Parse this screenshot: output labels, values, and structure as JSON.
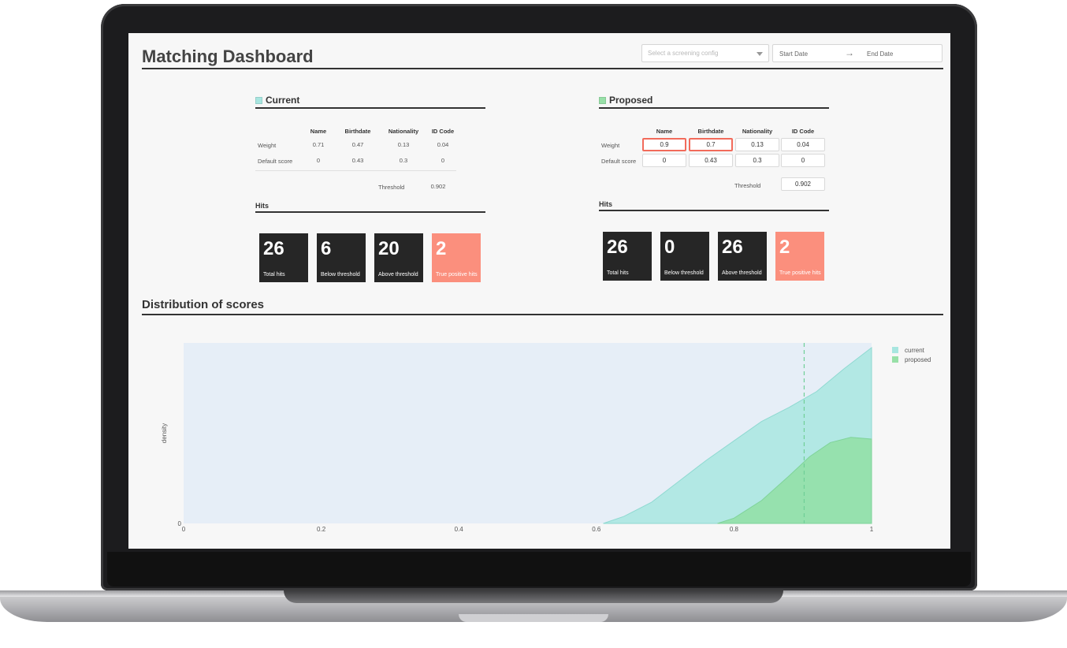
{
  "header": {
    "title": "Matching Dashboard",
    "config_placeholder": "Select a screening config",
    "start_date": "Start Date",
    "date_arrow": "→",
    "end_date": "End Date"
  },
  "colors": {
    "current": "#a8e6e0",
    "proposed": "#98e0a8",
    "card_dark": "#262626",
    "card_accent": "#fb8f7d",
    "changed_border": "#f26b5b"
  },
  "columns": [
    "Name",
    "Birthdate",
    "Nationality",
    "ID Code"
  ],
  "current": {
    "title": "Current",
    "weight_label": "Weight",
    "weights": [
      "0.71",
      "0.47",
      "0.13",
      "0.04"
    ],
    "default_label": "Default score",
    "defaults": [
      "0",
      "0.43",
      "0.3",
      "0"
    ],
    "threshold_label": "Threshold",
    "threshold": "0.902",
    "hits_title": "Hits",
    "cards": [
      {
        "value": "26",
        "label": "Total hits"
      },
      {
        "value": "6",
        "label": "Below threshold"
      },
      {
        "value": "20",
        "label": "Above threshold"
      },
      {
        "value": "2",
        "label": "True positive hits"
      }
    ]
  },
  "proposed": {
    "title": "Proposed",
    "weight_label": "Weight",
    "weights": [
      "0.9",
      "0.7",
      "0.13",
      "0.04"
    ],
    "default_label": "Default score",
    "defaults": [
      "0",
      "0.43",
      "0.3",
      "0"
    ],
    "threshold_label": "Threshold",
    "threshold": "0.902",
    "hits_title": "Hits",
    "cards": [
      {
        "value": "26",
        "label": "Total hits"
      },
      {
        "value": "0",
        "label": "Below threshold"
      },
      {
        "value": "26",
        "label": "Above threshold"
      },
      {
        "value": "2",
        "label": "True positive hits"
      }
    ]
  },
  "distribution": {
    "title": "Distribution of scores"
  },
  "chart_data": {
    "type": "area",
    "title": "",
    "xlabel": "",
    "ylabel": "density",
    "xlim": [
      0,
      1
    ],
    "x_ticks": [
      "0",
      "0.2",
      "0.4",
      "0.6",
      "0.8",
      "1"
    ],
    "y_ticks": [
      "0"
    ],
    "threshold_line": 0.902,
    "legend_position": "top-right",
    "series": [
      {
        "name": "current",
        "x": [
          0.61,
          0.64,
          0.68,
          0.72,
          0.76,
          0.8,
          0.84,
          0.88,
          0.92,
          0.96,
          1.0
        ],
        "y": [
          0.0,
          0.04,
          0.12,
          0.24,
          0.36,
          0.47,
          0.58,
          0.66,
          0.75,
          0.88,
          1.0
        ]
      },
      {
        "name": "proposed",
        "x": [
          0.776,
          0.8,
          0.84,
          0.88,
          0.91,
          0.94,
          0.97,
          1.0
        ],
        "y": [
          0.0,
          0.03,
          0.13,
          0.27,
          0.38,
          0.46,
          0.49,
          0.48
        ]
      }
    ]
  }
}
